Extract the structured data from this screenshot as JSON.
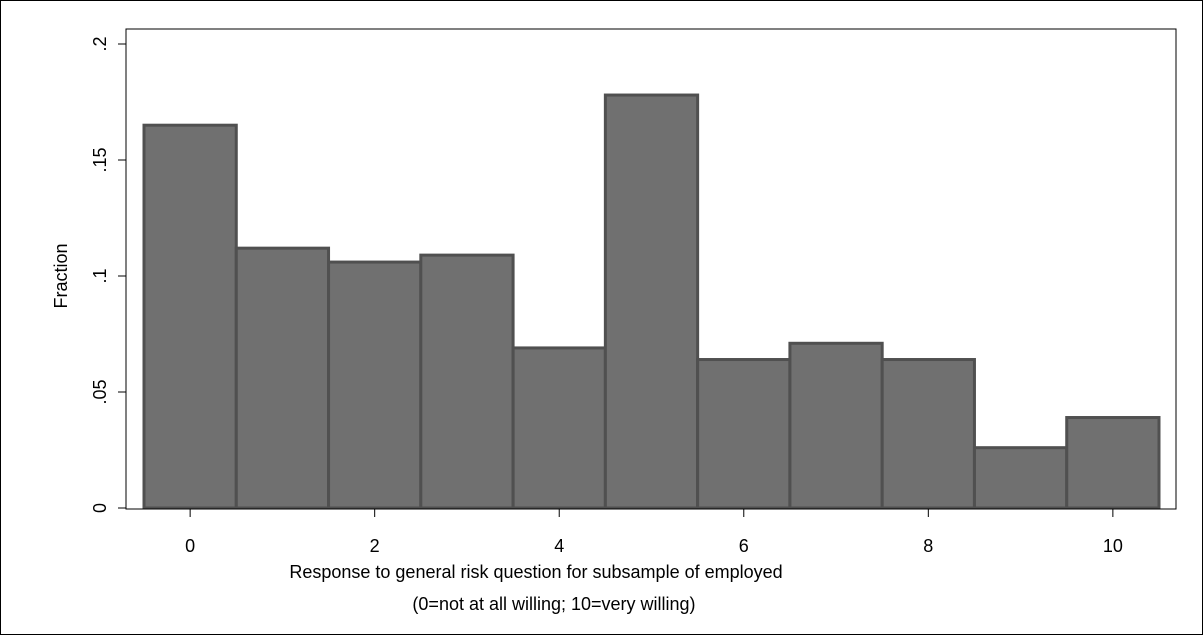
{
  "chart_data": {
    "type": "bar",
    "categories": [
      0,
      1,
      2,
      3,
      4,
      5,
      6,
      7,
      8,
      9,
      10
    ],
    "values": [
      0.165,
      0.112,
      0.106,
      0.109,
      0.069,
      0.178,
      0.064,
      0.071,
      0.064,
      0.026,
      0.039
    ],
    "xlim": [
      -0.5,
      10.5
    ],
    "ylim": [
      0,
      0.2
    ],
    "xticks": [
      0,
      2,
      4,
      6,
      8,
      10
    ],
    "xtick_labels": [
      "0",
      "2",
      "4",
      "6",
      "8",
      "10"
    ],
    "yticks": [
      0,
      0.05,
      0.1,
      0.15,
      0.2
    ],
    "ytick_labels": [
      "0",
      ".05",
      ".1",
      ".15",
      ".2"
    ],
    "xlabel_lines": [
      "Response to general risk question for subsample of employed",
      "(0=not at all willing; 10=very willing)"
    ],
    "ylabel": "Fraction",
    "grid": false,
    "legend": "none",
    "colors": {
      "bar_fill": "#707070",
      "bar_stroke": "#505050",
      "axis": "#000000"
    }
  }
}
